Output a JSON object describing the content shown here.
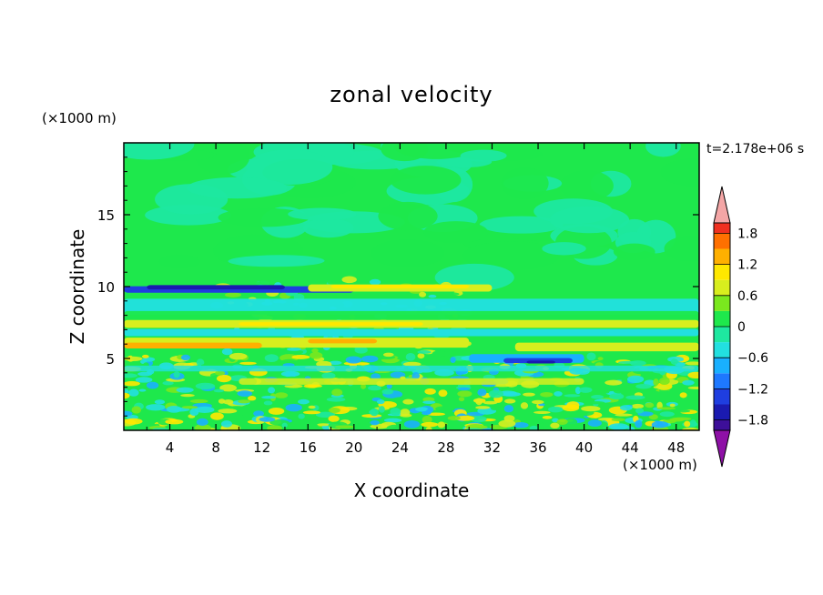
{
  "chart_data": {
    "type": "heatmap",
    "title": "zonal velocity",
    "xlabel": "X coordinate",
    "ylabel": "Z coordinate",
    "x_unit": "(×1000 m)",
    "y_unit": "(×1000 m)",
    "time_label": "t=2.178e+06 s",
    "xlim": [
      0,
      50
    ],
    "ylim": [
      0,
      20
    ],
    "x_ticks": [
      4,
      8,
      12,
      16,
      20,
      24,
      28,
      32,
      36,
      40,
      44,
      48
    ],
    "y_ticks": [
      5,
      10,
      15
    ],
    "colorbar": {
      "levels": [
        -2.0,
        -1.8,
        -1.5,
        -1.2,
        -0.9,
        -0.6,
        -0.3,
        0,
        0.3,
        0.6,
        0.9,
        1.2,
        1.5,
        1.8,
        2.0
      ],
      "colors": [
        "#3d0f99",
        "#1a1ab0",
        "#1f3ee0",
        "#1e78ff",
        "#19b0ff",
        "#22e0e0",
        "#1ee8a0",
        "#1ee84c",
        "#7ae81e",
        "#d8ee1e",
        "#ffe800",
        "#ffb000",
        "#ff7000",
        "#f03020"
      ],
      "under_color": "#8e10a6",
      "over_color": "#f4a6a6",
      "tick_labels": [
        "1.8",
        "1.2",
        "0.6",
        "0",
        "−0.6",
        "−1.2",
        "−1.8"
      ]
    },
    "field_bands": [
      {
        "z": [
          13,
          20
        ],
        "level": "0 to 0.3",
        "note": "upper layer, patchy mix with -0.3 to 0"
      },
      {
        "z": [
          9.5,
          10.3
        ],
        "x": [
          0,
          18
        ],
        "value": -1.5
      },
      {
        "z": [
          9.5,
          10.3
        ],
        "x": [
          18,
          32
        ],
        "value": 0.9
      },
      {
        "z": [
          7.3,
          7.8
        ],
        "x": [
          0,
          50
        ],
        "value": 0.6
      },
      {
        "z": [
          5.5,
          6.2
        ],
        "x": [
          0,
          28
        ],
        "value": 1.2
      },
      {
        "z": [
          4.5,
          5.2
        ],
        "x": [
          32,
          40
        ],
        "value": -1.5
      },
      {
        "z": [
          0,
          5
        ],
        "level": "-0.6 to 0.9",
        "note": "turbulent lower layer"
      }
    ]
  }
}
